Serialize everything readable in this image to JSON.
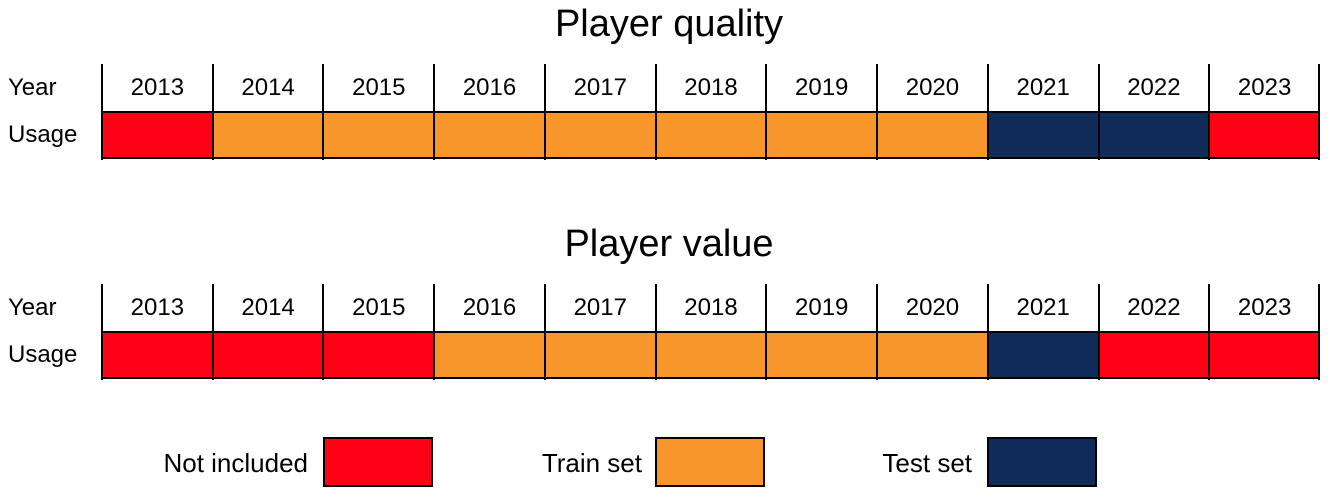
{
  "colors": {
    "not_included": "#ff0015",
    "train_set": "#f7962a",
    "test_set": "#0f2b58"
  },
  "diagrams": [
    {
      "title": "Player quality",
      "row_labels": {
        "year": "Year",
        "usage": "Usage"
      },
      "years": [
        "2013",
        "2014",
        "2015",
        "2016",
        "2017",
        "2018",
        "2019",
        "2020",
        "2021",
        "2022",
        "2023"
      ],
      "usage": [
        "not_included",
        "train_set",
        "train_set",
        "train_set",
        "train_set",
        "train_set",
        "train_set",
        "train_set",
        "test_set",
        "test_set",
        "not_included"
      ]
    },
    {
      "title": "Player value",
      "row_labels": {
        "year": "Year",
        "usage": "Usage"
      },
      "years": [
        "2013",
        "2014",
        "2015",
        "2016",
        "2017",
        "2018",
        "2019",
        "2020",
        "2021",
        "2022",
        "2023"
      ],
      "usage": [
        "not_included",
        "not_included",
        "not_included",
        "train_set",
        "train_set",
        "train_set",
        "train_set",
        "train_set",
        "test_set",
        "not_included",
        "not_included"
      ]
    }
  ],
  "legend": [
    {
      "key": "not_included",
      "label": "Not included"
    },
    {
      "key": "train_set",
      "label": "Train set"
    },
    {
      "key": "test_set",
      "label": "Test set"
    }
  ]
}
